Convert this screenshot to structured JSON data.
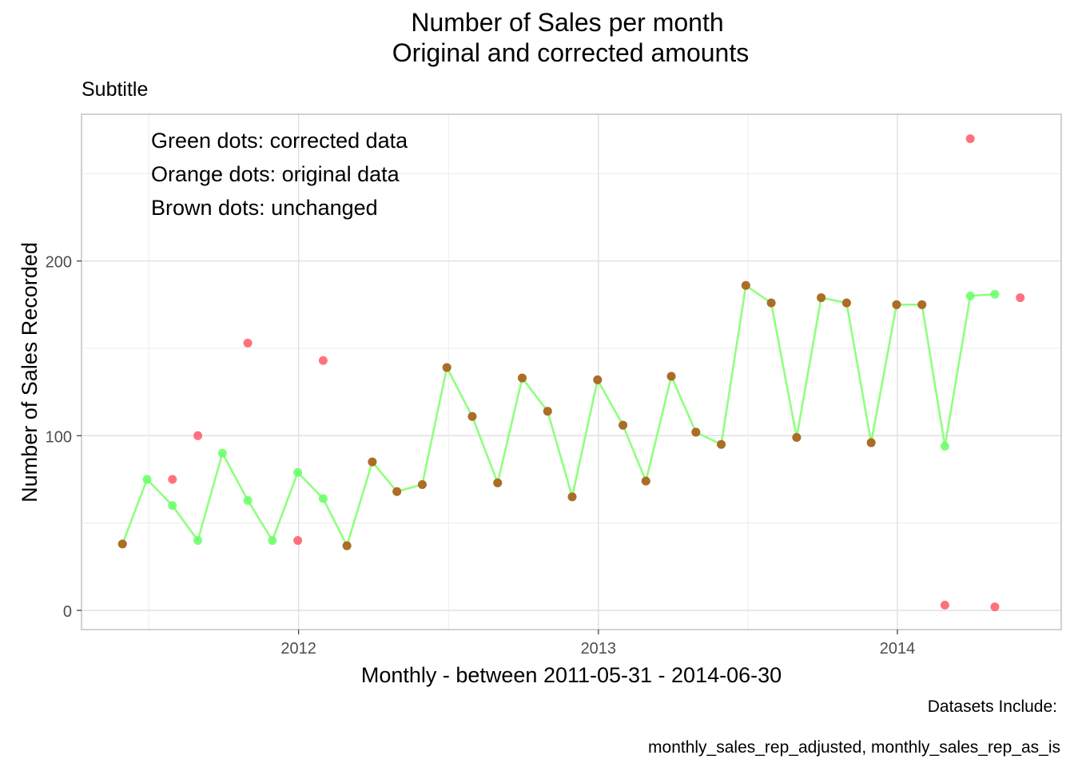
{
  "chart_data": {
    "type": "line",
    "title_line1": "Number of Sales per month",
    "title_line2": "Original and corrected amounts",
    "subtitle": "Subtitle",
    "xlabel": "Monthly - between 2011-05-31 - 2014-06-30",
    "ylabel": "Number of Sales Recorded",
    "caption_line1": "Datasets Include:",
    "caption_line2": "monthly_sales_rep_adjusted, monthly_sales_rep_as_is",
    "annotations": [
      "Green dots: corrected data",
      "Orange dots: original data",
      "Brown dots: unchanged"
    ],
    "xlim": [
      "2011-04-11",
      "2014-07-20"
    ],
    "ylim": [
      -11,
      284
    ],
    "x_ticks": [
      {
        "date": "2012-01-01",
        "label": "2012"
      },
      {
        "date": "2013-01-01",
        "label": "2013"
      },
      {
        "date": "2014-01-01",
        "label": "2014"
      }
    ],
    "y_ticks": [
      0,
      100,
      200
    ],
    "grid": true,
    "colors": {
      "corrected": "#66ff66",
      "original": "#ff4d5e",
      "unchanged": "#b35c1e",
      "line": "#90ff80",
      "grid": "#dedede",
      "border": "#b3b3b3"
    },
    "series": [
      {
        "name": "corrected",
        "x": [
          "2011-05-31",
          "2011-06-30",
          "2011-07-31",
          "2011-08-31",
          "2011-09-30",
          "2011-10-31",
          "2011-11-30",
          "2011-12-31",
          "2012-01-31",
          "2012-02-29",
          "2012-03-31",
          "2012-04-30",
          "2012-05-31",
          "2012-06-30",
          "2012-07-31",
          "2012-08-31",
          "2012-09-30",
          "2012-10-31",
          "2012-11-30",
          "2012-12-31",
          "2013-01-31",
          "2013-02-28",
          "2013-03-31",
          "2013-04-30",
          "2013-05-31",
          "2013-06-30",
          "2013-07-31",
          "2013-08-31",
          "2013-09-30",
          "2013-10-31",
          "2013-11-30",
          "2013-12-31",
          "2014-01-31",
          "2014-02-28",
          "2014-03-31"
        ],
        "values": [
          38,
          75,
          60,
          40,
          90,
          63,
          40,
          79,
          64,
          37,
          85,
          68,
          72,
          139,
          111,
          73,
          133,
          114,
          65,
          132,
          106,
          74,
          134,
          102,
          95,
          186,
          176,
          99,
          179,
          176,
          96,
          175,
          175,
          94,
          180
        ]
      },
      {
        "name": "corrected_tail",
        "x": [
          "2014-03-31",
          "2014-04-30"
        ],
        "values": [
          180,
          181
        ]
      },
      {
        "name": "original",
        "x": [
          "2011-07-31",
          "2011-08-31",
          "2011-10-31",
          "2011-12-31",
          "2012-01-31",
          "2014-02-28",
          "2014-03-31",
          "2014-04-30",
          "2014-05-31"
        ],
        "values": [
          75,
          100,
          153,
          40,
          143,
          3,
          270,
          2,
          179
        ]
      }
    ],
    "unchanged_points": {
      "x": [
        "2011-05-31",
        "2012-02-29",
        "2012-03-31",
        "2012-04-30",
        "2012-05-31",
        "2012-06-30",
        "2012-07-31",
        "2012-08-31",
        "2012-09-30",
        "2012-10-31",
        "2012-11-30",
        "2012-12-31",
        "2013-01-31",
        "2013-02-28",
        "2013-03-31",
        "2013-04-30",
        "2013-05-31",
        "2013-06-30",
        "2013-07-31",
        "2013-08-31",
        "2013-09-30",
        "2013-10-31",
        "2013-11-30",
        "2013-12-31",
        "2014-01-31"
      ],
      "values": [
        38,
        37,
        85,
        68,
        72,
        139,
        111,
        73,
        133,
        114,
        65,
        132,
        106,
        74,
        134,
        102,
        95,
        186,
        176,
        99,
        179,
        176,
        96,
        175,
        175
      ]
    }
  }
}
